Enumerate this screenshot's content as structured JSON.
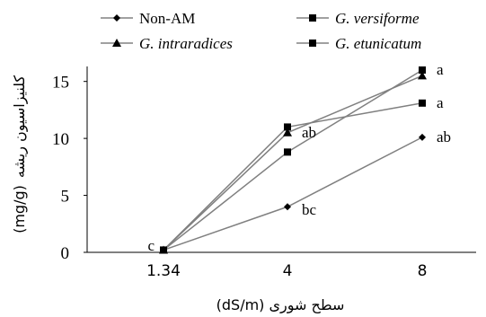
{
  "chart_data": {
    "type": "line",
    "x_categories": [
      "1.34",
      "4",
      "8"
    ],
    "xlabel": "سطح شوری (dS/m)",
    "ylabel": "کلنیزاسیون ریشه (mg/g)",
    "ylabel_top": "کلنیزاسیون ریشه",
    "ylabel_bottom": "(mg/g)",
    "ylim": [
      0,
      16
    ],
    "yticks": [
      "0",
      "5",
      "10",
      "15"
    ],
    "grid": false,
    "legend_position": "top",
    "series": [
      {
        "name": "Non-AM",
        "marker": "diamond",
        "italic": false,
        "values": [
          0.2,
          4,
          10.1
        ]
      },
      {
        "name": "G. versiforme",
        "marker": "square",
        "italic": true,
        "values": [
          0.2,
          11,
          13.1
        ]
      },
      {
        "name": "G. intraradices",
        "marker": "triangle",
        "italic": true,
        "values": [
          0.2,
          10.5,
          15.5
        ]
      },
      {
        "name": "G. etunicatum",
        "marker": "square",
        "italic": true,
        "values": [
          0.2,
          8.8,
          16
        ]
      }
    ],
    "annotations": [
      {
        "text": "c",
        "x": "1.34",
        "y": 0.3
      },
      {
        "text": "bc",
        "x": "4",
        "y": 3.7
      },
      {
        "text": "ab",
        "x": "4",
        "y": 10.5
      },
      {
        "text": "a",
        "x": "8",
        "y": 16
      },
      {
        "text": "a",
        "x": "8",
        "y": 13.1
      },
      {
        "text": "ab",
        "x": "8",
        "y": 10.1
      }
    ],
    "colors": {
      "line": "#808080",
      "marker": "#000000",
      "axis": "#000000"
    }
  }
}
